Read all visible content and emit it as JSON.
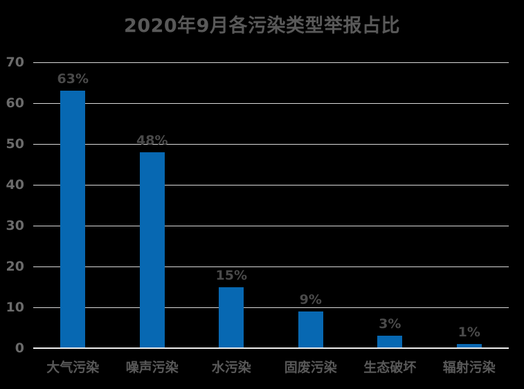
{
  "chart_data": {
    "type": "bar",
    "title": "2020年9月各污染类型举报占比",
    "categories": [
      "大气污染",
      "噪声污染",
      "水污染",
      "固废污染",
      "生态破坏",
      "辐射污染"
    ],
    "values": [
      63,
      48,
      15,
      9,
      3,
      1
    ],
    "data_labels": [
      "63%",
      "48%",
      "15%",
      "9%",
      "3%",
      "1%"
    ],
    "xlabel": "",
    "ylabel": "",
    "ylim": [
      0,
      70
    ],
    "y_ticks": [
      0,
      10,
      20,
      30,
      40,
      50,
      60,
      70
    ],
    "grid": true,
    "legend": false,
    "colors": {
      "background": "#000000",
      "bar": "#0768B2",
      "title_text": "#595959",
      "tick_text": "#6B6B6B",
      "data_label_text": "#4A4A4A",
      "gridline": "#D9D9D9",
      "axis_line": "#EDEDED"
    }
  }
}
